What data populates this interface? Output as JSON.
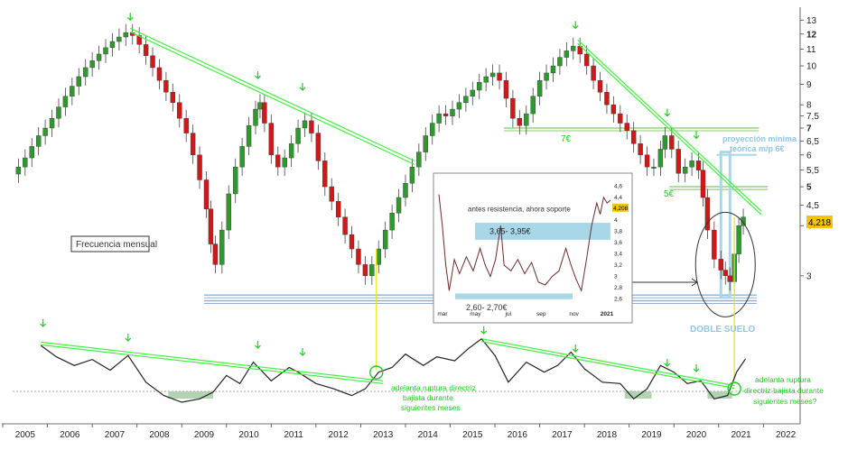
{
  "chart_data": {
    "type": "candlestick",
    "frequency_label": "Frecuencia mensual",
    "colors": {
      "up": "#2e9a2e",
      "down": "#d01818",
      "trend": "#44ee44",
      "support": "#8fb0d8",
      "level": "#66bb44",
      "zone": "#a8d8e8"
    },
    "y_ticks": [
      "13",
      "12",
      "11",
      "10",
      "9",
      "8",
      "7,5",
      "7",
      "6,5",
      "6",
      "5,5",
      "5",
      "4,5",
      "4",
      "3"
    ],
    "y_bold_ticks": [
      "12",
      "7",
      "5",
      "4"
    ],
    "x_ticks": [
      "2005",
      "2006",
      "2007",
      "2008",
      "2009",
      "2010",
      "2011",
      "2012",
      "2013",
      "2014",
      "2015",
      "2016",
      "2017",
      "2018",
      "2019",
      "2020",
      "2021",
      "2022"
    ],
    "scale": "log",
    "ylim": [
      2.45,
      13.5
    ],
    "xlim": [
      2004.6,
      2022.3
    ],
    "last_price": "4,218",
    "closes": [
      [
        2004.85,
        5.6
      ],
      [
        2005.0,
        5.9
      ],
      [
        2005.15,
        6.3
      ],
      [
        2005.3,
        6.7
      ],
      [
        2005.45,
        7.0
      ],
      [
        2005.6,
        7.4
      ],
      [
        2005.75,
        7.9
      ],
      [
        2005.9,
        8.4
      ],
      [
        2006.05,
        8.9
      ],
      [
        2006.2,
        9.4
      ],
      [
        2006.35,
        9.9
      ],
      [
        2006.5,
        10.3
      ],
      [
        2006.65,
        10.7
      ],
      [
        2006.8,
        11.1
      ],
      [
        2006.95,
        11.5
      ],
      [
        2007.1,
        11.8
      ],
      [
        2007.25,
        12.1
      ],
      [
        2007.4,
        11.9
      ],
      [
        2007.55,
        11.3
      ],
      [
        2007.7,
        10.6
      ],
      [
        2007.85,
        9.9
      ],
      [
        2008.0,
        9.2
      ],
      [
        2008.15,
        8.6
      ],
      [
        2008.3,
        8.1
      ],
      [
        2008.45,
        7.4
      ],
      [
        2008.6,
        6.8
      ],
      [
        2008.75,
        6.0
      ],
      [
        2008.9,
        5.2
      ],
      [
        2009.05,
        4.4
      ],
      [
        2009.15,
        3.6
      ],
      [
        2009.25,
        3.2
      ],
      [
        2009.4,
        3.9
      ],
      [
        2009.55,
        4.8
      ],
      [
        2009.7,
        5.6
      ],
      [
        2009.85,
        6.3
      ],
      [
        2010.0,
        7.1
      ],
      [
        2010.15,
        7.8
      ],
      [
        2010.25,
        8.1
      ],
      [
        2010.35,
        7.2
      ],
      [
        2010.5,
        6.0
      ],
      [
        2010.65,
        5.6
      ],
      [
        2010.8,
        5.9
      ],
      [
        2010.95,
        6.4
      ],
      [
        2011.1,
        7.0
      ],
      [
        2011.25,
        7.3
      ],
      [
        2011.4,
        6.8
      ],
      [
        2011.55,
        5.8
      ],
      [
        2011.7,
        5.0
      ],
      [
        2011.85,
        4.6
      ],
      [
        2012.0,
        4.2
      ],
      [
        2012.15,
        3.8
      ],
      [
        2012.3,
        3.5
      ],
      [
        2012.45,
        3.2
      ],
      [
        2012.6,
        3.0
      ],
      [
        2012.75,
        3.2
      ],
      [
        2012.9,
        3.5
      ],
      [
        2013.05,
        3.9
      ],
      [
        2013.2,
        4.3
      ],
      [
        2013.35,
        4.7
      ],
      [
        2013.5,
        5.1
      ],
      [
        2013.65,
        5.6
      ],
      [
        2013.8,
        6.1
      ],
      [
        2013.95,
        6.7
      ],
      [
        2014.1,
        7.2
      ],
      [
        2014.25,
        7.6
      ],
      [
        2014.4,
        7.5
      ],
      [
        2014.55,
        7.8
      ],
      [
        2014.7,
        8.1
      ],
      [
        2014.85,
        8.4
      ],
      [
        2015.0,
        8.7
      ],
      [
        2015.15,
        9.1
      ],
      [
        2015.3,
        9.4
      ],
      [
        2015.45,
        9.6
      ],
      [
        2015.6,
        9.2
      ],
      [
        2015.75,
        8.3
      ],
      [
        2015.9,
        7.4
      ],
      [
        2016.05,
        7.1
      ],
      [
        2016.2,
        7.6
      ],
      [
        2016.35,
        8.4
      ],
      [
        2016.5,
        9.2
      ],
      [
        2016.65,
        9.6
      ],
      [
        2016.8,
        10.0
      ],
      [
        2016.95,
        10.5
      ],
      [
        2017.1,
        10.9
      ],
      [
        2017.25,
        11.2
      ],
      [
        2017.4,
        10.7
      ],
      [
        2017.55,
        10.0
      ],
      [
        2017.7,
        9.2
      ],
      [
        2017.85,
        8.6
      ],
      [
        2018.0,
        8.0
      ],
      [
        2018.15,
        7.6
      ],
      [
        2018.3,
        7.2
      ],
      [
        2018.45,
        6.9
      ],
      [
        2018.6,
        6.4
      ],
      [
        2018.75,
        6.0
      ],
      [
        2018.9,
        5.6
      ],
      [
        2019.05,
        5.6
      ],
      [
        2019.2,
        6.2
      ],
      [
        2019.3,
        6.7
      ],
      [
        2019.45,
        6.2
      ],
      [
        2019.6,
        5.4
      ],
      [
        2019.75,
        5.6
      ],
      [
        2019.9,
        5.8
      ],
      [
        2020.05,
        5.5
      ],
      [
        2020.15,
        4.7
      ],
      [
        2020.25,
        3.9
      ],
      [
        2020.4,
        3.3
      ],
      [
        2020.55,
        3.1
      ],
      [
        2020.65,
        3.0
      ],
      [
        2020.75,
        2.9
      ],
      [
        2020.85,
        3.4
      ],
      [
        2020.95,
        4.0
      ],
      [
        2021.05,
        4.2
      ]
    ],
    "trendlines_price": [
      {
        "from": [
          2007.35,
          12.4
        ],
        "to": [
          2013.7,
          5.8
        ]
      },
      {
        "from": [
          2017.35,
          11.6
        ],
        "to": [
          2021.45,
          4.35
        ]
      }
    ],
    "levels": [
      {
        "label": "7€",
        "value": 7.0,
        "from": 2015.7,
        "to": 2021.4
      },
      {
        "label": "5€",
        "value": 5.0,
        "from": 2019.4,
        "to": 2021.6
      }
    ],
    "support_zone": {
      "label": "2,60- 2,70€",
      "low": 2.6,
      "high": 2.7
    },
    "oscillator": {
      "points": [
        [
          2005.35,
          0.15
        ],
        [
          2005.7,
          0.32
        ],
        [
          2006.1,
          0.45
        ],
        [
          2006.5,
          0.36
        ],
        [
          2006.9,
          0.52
        ],
        [
          2007.3,
          0.3
        ],
        [
          2007.7,
          0.7
        ],
        [
          2008.1,
          0.9
        ],
        [
          2008.5,
          1.0
        ],
        [
          2008.9,
          0.95
        ],
        [
          2009.2,
          0.85
        ],
        [
          2009.5,
          0.6
        ],
        [
          2009.8,
          0.72
        ],
        [
          2010.1,
          0.4
        ],
        [
          2010.5,
          0.68
        ],
        [
          2010.9,
          0.48
        ],
        [
          2011.1,
          0.55
        ],
        [
          2011.5,
          0.72
        ],
        [
          2011.9,
          0.8
        ],
        [
          2012.3,
          0.9
        ],
        [
          2012.6,
          0.8
        ],
        [
          2012.9,
          0.55
        ],
        [
          2013.2,
          0.48
        ],
        [
          2013.5,
          0.28
        ],
        [
          2013.9,
          0.45
        ],
        [
          2014.2,
          0.32
        ],
        [
          2014.6,
          0.38
        ],
        [
          2014.9,
          0.2
        ],
        [
          2015.2,
          0.05
        ],
        [
          2015.5,
          0.3
        ],
        [
          2015.8,
          0.7
        ],
        [
          2016.2,
          0.4
        ],
        [
          2016.6,
          0.55
        ],
        [
          2016.9,
          0.45
        ],
        [
          2017.2,
          0.25
        ],
        [
          2017.5,
          0.5
        ],
        [
          2017.9,
          0.7
        ],
        [
          2018.3,
          0.72
        ],
        [
          2018.6,
          0.95
        ],
        [
          2018.9,
          0.8
        ],
        [
          2019.2,
          0.45
        ],
        [
          2019.5,
          0.55
        ],
        [
          2019.8,
          0.72
        ],
        [
          2020.1,
          0.68
        ],
        [
          2020.4,
          0.95
        ],
        [
          2020.7,
          0.9
        ],
        [
          2020.9,
          0.55
        ],
        [
          2021.1,
          0.35
        ]
      ],
      "trendlines": [
        {
          "from": [
            2005.35,
            0.1
          ],
          "to": [
            2013.0,
            0.68
          ]
        },
        {
          "from": [
            2015.2,
            0.05
          ],
          "to": [
            2020.85,
            0.75
          ]
        }
      ],
      "breakouts": [
        2012.85,
        2020.85
      ]
    },
    "annotations": {
      "breakout_2013": [
        "adelanta ruptura directriz",
        "bajista durante",
        "siguientes meses"
      ],
      "breakout_2021": [
        "adelanta ruptura",
        "directriz bajista durante",
        "siguientes meses?"
      ],
      "projection": [
        "proyección mínima",
        "teórica m/p 6€"
      ],
      "double_bottom": "DOBLE SUELO"
    },
    "inset": {
      "support_label": "antes resistencia, ahora soporte",
      "resistance_zone_label": "3,65- 3,95€",
      "last_price": "4,208",
      "y_ticks": [
        "4,6",
        "4,4",
        "4,2",
        "4",
        "3,8",
        "3,6",
        "3,4",
        "3,2",
        "3",
        "2,8",
        "2,6"
      ],
      "x_ticks": [
        "mar",
        "may",
        "jul",
        "sep",
        "nov",
        "2021"
      ],
      "series": [
        [
          0.0,
          4.45
        ],
        [
          0.02,
          3.9
        ],
        [
          0.04,
          3.2
        ],
        [
          0.06,
          2.75
        ],
        [
          0.09,
          3.3
        ],
        [
          0.12,
          3.05
        ],
        [
          0.16,
          3.35
        ],
        [
          0.2,
          3.1
        ],
        [
          0.24,
          3.5
        ],
        [
          0.27,
          3.2
        ],
        [
          0.3,
          3.0
        ],
        [
          0.33,
          3.3
        ],
        [
          0.36,
          3.9
        ],
        [
          0.38,
          3.2
        ],
        [
          0.42,
          3.1
        ],
        [
          0.46,
          3.3
        ],
        [
          0.5,
          3.05
        ],
        [
          0.54,
          3.25
        ],
        [
          0.58,
          2.9
        ],
        [
          0.62,
          2.85
        ],
        [
          0.66,
          3.0
        ],
        [
          0.7,
          3.1
        ],
        [
          0.74,
          3.5
        ],
        [
          0.77,
          3.2
        ],
        [
          0.8,
          2.95
        ],
        [
          0.83,
          2.75
        ],
        [
          0.86,
          3.3
        ],
        [
          0.89,
          3.9
        ],
        [
          0.92,
          4.3
        ],
        [
          0.94,
          4.1
        ],
        [
          0.96,
          4.4
        ],
        [
          0.98,
          4.3
        ],
        [
          1.0,
          4.35
        ]
      ]
    }
  }
}
